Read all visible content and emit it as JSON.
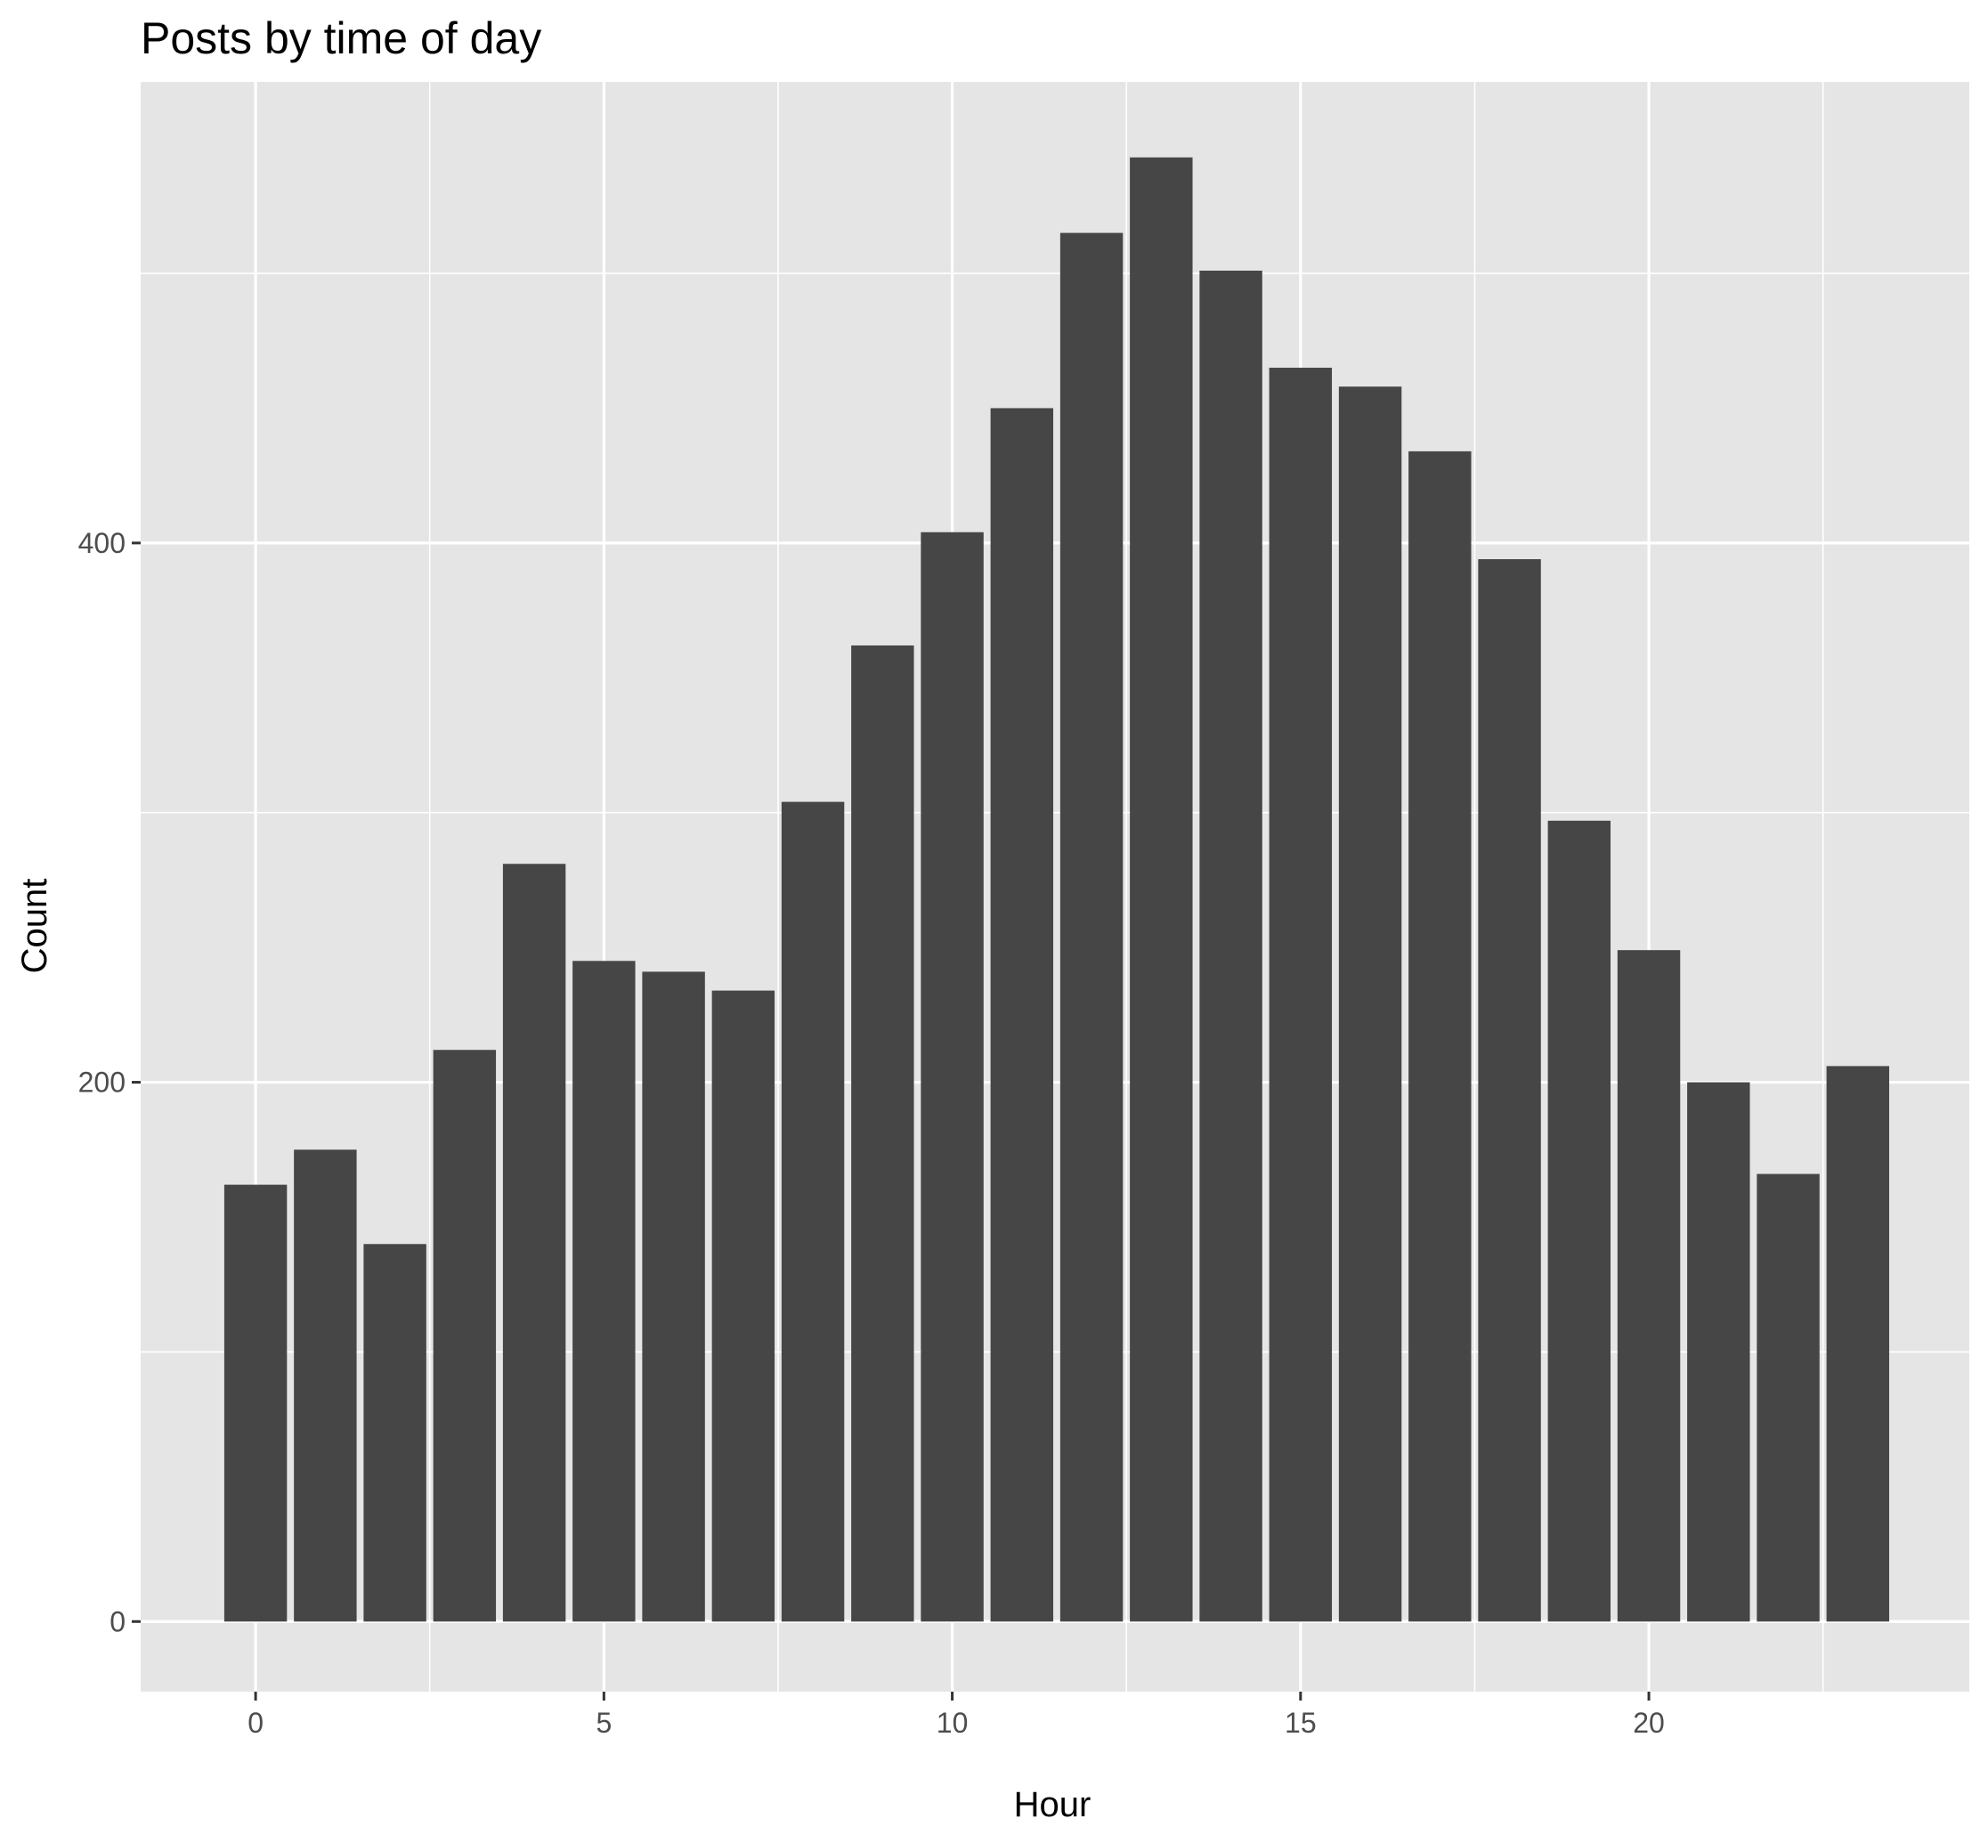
{
  "chart_data": {
    "type": "bar",
    "title": "Posts by time of day",
    "xlabel": "Hour",
    "ylabel": "Count",
    "x": [
      0,
      1,
      2,
      3,
      4,
      5,
      6,
      7,
      8,
      9,
      10,
      11,
      12,
      13,
      14,
      15,
      16,
      17,
      18,
      19,
      20,
      21,
      22,
      23
    ],
    "values": [
      162,
      175,
      140,
      212,
      281,
      245,
      241,
      234,
      304,
      362,
      404,
      450,
      515,
      543,
      501,
      465,
      458,
      434,
      394,
      297,
      249,
      200,
      166,
      206
    ],
    "xlim": [
      -1.65,
      24.6
    ],
    "ylim": [
      -26,
      571
    ],
    "x_ticks": [
      0,
      5,
      10,
      15,
      20
    ],
    "x_tick_labels": [
      "0",
      "5",
      "10",
      "15",
      "20"
    ],
    "y_ticks": [
      0,
      200,
      400
    ],
    "y_tick_labels": [
      "0",
      "200",
      "400"
    ],
    "grid": true,
    "colors": {
      "bar": "#464646",
      "panel": "#e5e5e5",
      "grid": "#ffffff"
    }
  }
}
